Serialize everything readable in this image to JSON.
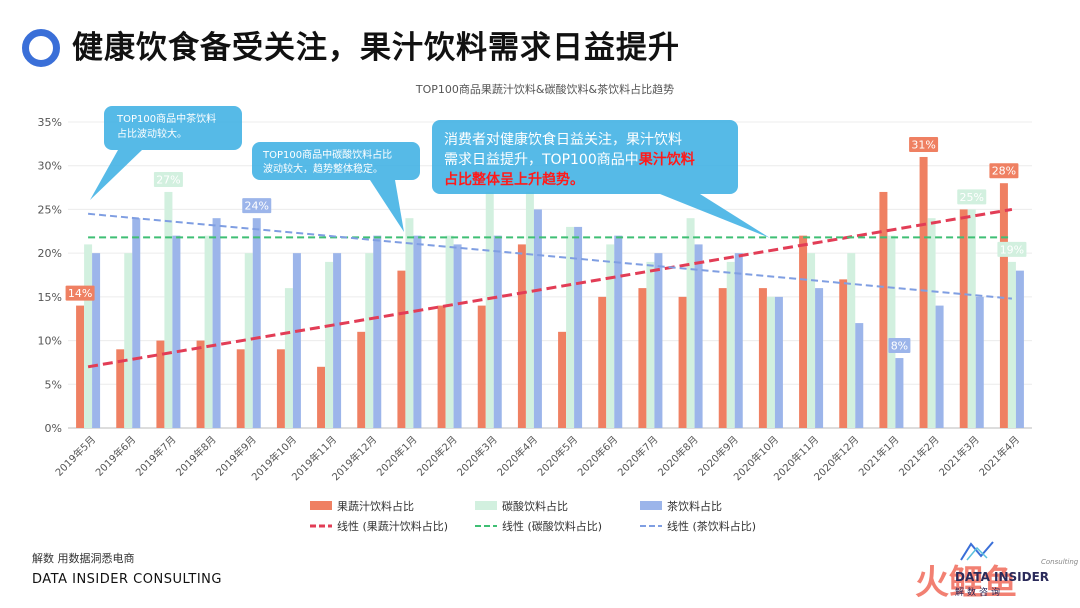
{
  "header": {
    "title": "健康饮食备受关注，果汁饮料需求日益提升"
  },
  "footer": {
    "line1": "解数 用数据洞悉电商",
    "line2": "DATA INSIDER CONSULTING",
    "brand_name": "DATA INSIDER",
    "brand_sub": "Consulting",
    "brand_cn": "解数咨询",
    "watermark": "火鲤鱼"
  },
  "callouts": {
    "tea": "TOP100商品中茶饮料\n占比波动较大。",
    "carbonated": "TOP100商品中碳酸饮料占比\n波动较大，趋势整体稳定。",
    "juice_plain": "消费者对健康饮食日益关注，果汁饮料\n需求日益提升，TOP100商品中",
    "juice_emph_1": "果汁饮料",
    "juice_emph_2": "占比整体呈上升趋势。"
  },
  "colors": {
    "juice": "#ef8062",
    "carbonated": "#d2f0df",
    "tea": "#9cb5ea",
    "trend_juice": "#e23d56",
    "trend_carbonated": "#3fbf74",
    "trend_tea": "#7f9ee2",
    "callout": "#44b3e4",
    "emphasis": "#ff1a1a",
    "accent": "#3a6fd8"
  },
  "chart_data": {
    "type": "bar",
    "title": "TOP100商品果蔬汁饮料&碳酸饮料&茶饮料占比趋势",
    "categories": [
      "2019年5月",
      "2019年6月",
      "2019年7月",
      "2019年8月",
      "2019年9月",
      "2019年10月",
      "2019年11月",
      "2019年12月",
      "2020年1月",
      "2020年2月",
      "2020年3月",
      "2020年4月",
      "2020年5月",
      "2020年6月",
      "2020年7月",
      "2020年8月",
      "2020年9月",
      "2020年10月",
      "2020年11月",
      "2020年12月",
      "2021年1月",
      "2021年2月",
      "2021年3月",
      "2021年4月"
    ],
    "yticks": [
      "0%",
      "5%",
      "10%",
      "15%",
      "20%",
      "25%",
      "30%",
      "35%"
    ],
    "ylim": [
      0,
      35
    ],
    "series": [
      {
        "name": "果蔬汁饮料占比",
        "key": "juice",
        "values": [
          14,
          9,
          10,
          10,
          9,
          9,
          7,
          11,
          18,
          14,
          14,
          21,
          11,
          15,
          16,
          15,
          16,
          16,
          22,
          17,
          27,
          31,
          25,
          28
        ]
      },
      {
        "name": "碳酸饮料占比",
        "key": "carbonated",
        "values": [
          21,
          20,
          27,
          22,
          20,
          16,
          19,
          20,
          24,
          22,
          27,
          27,
          23,
          21,
          19,
          24,
          19,
          15,
          20,
          20,
          22,
          24,
          25,
          19
        ]
      },
      {
        "name": "茶饮料占比",
        "key": "tea",
        "values": [
          20,
          24,
          22,
          24,
          24,
          20,
          20,
          22,
          22,
          21,
          22,
          25,
          23,
          22,
          20,
          21,
          20,
          15,
          16,
          12,
          8,
          14,
          15,
          18
        ]
      }
    ],
    "trendlines": [
      {
        "name": "线性 (果蔬汁饮料占比)",
        "key": "trend_juice",
        "start": 7,
        "end": 25
      },
      {
        "name": "线性 (碳酸饮料占比)",
        "key": "trend_carbonated",
        "start": 21.8,
        "end": 21.8
      },
      {
        "name": "线性 (茶饮料占比)",
        "key": "trend_tea",
        "start": 24.5,
        "end": 14.8
      }
    ],
    "data_labels": [
      {
        "series": 0,
        "index": 0,
        "text": "14%"
      },
      {
        "series": 1,
        "index": 2,
        "text": "27%"
      },
      {
        "series": 2,
        "index": 4,
        "text": "24%"
      },
      {
        "series": 2,
        "index": 20,
        "text": "8%"
      },
      {
        "series": 0,
        "index": 21,
        "text": "31%"
      },
      {
        "series": 1,
        "index": 22,
        "text": "25%"
      },
      {
        "series": 0,
        "index": 23,
        "text": "28%"
      },
      {
        "series": 1,
        "index": 23,
        "text": "19%"
      }
    ]
  }
}
